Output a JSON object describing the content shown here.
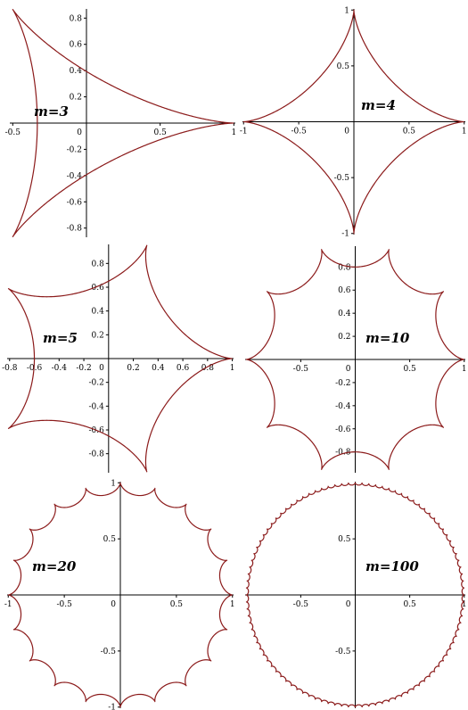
{
  "colors": {
    "curve": "#8b1a1a",
    "axes": "#000000",
    "background": "#ffffff"
  },
  "chart_data": [
    {
      "type": "line",
      "m": 3,
      "title": "m=3",
      "legend_position": "center-left",
      "xlim": [
        -0.52,
        1.01
      ],
      "ylim": [
        -0.87,
        0.87
      ],
      "xticks": [
        {
          "v": -0.5,
          "t": "-0.5"
        },
        {
          "v": 0.5,
          "t": "0.5"
        },
        {
          "v": 1,
          "t": "1"
        }
      ],
      "yticks": [
        {
          "v": 0.8,
          "t": "0.8"
        },
        {
          "v": 0.6,
          "t": "0.6"
        },
        {
          "v": 0.4,
          "t": "0.4"
        },
        {
          "v": 0.2,
          "t": "0.2"
        },
        {
          "v": -0.2,
          "t": "-0.2"
        },
        {
          "v": -0.4,
          "t": "-0.4"
        },
        {
          "v": -0.6,
          "t": "-0.6"
        },
        {
          "v": -0.8,
          "t": "-0.8"
        }
      ],
      "origin_label": "0"
    },
    {
      "type": "line",
      "m": 4,
      "title": "m=4",
      "legend_position": "center-right",
      "xlim": [
        -1.01,
        1.01
      ],
      "ylim": [
        -1.01,
        1.01
      ],
      "xticks": [
        {
          "v": -1,
          "t": "-1"
        },
        {
          "v": -0.5,
          "t": "-0.5"
        },
        {
          "v": 0.5,
          "t": "0.5"
        },
        {
          "v": 1,
          "t": "1"
        }
      ],
      "yticks": [
        {
          "v": 1,
          "t": "1"
        },
        {
          "v": 0.5,
          "t": "0.5"
        },
        {
          "v": -0.5,
          "t": "-0.5"
        },
        {
          "v": -1,
          "t": "-1"
        }
      ],
      "origin_label": "0"
    },
    {
      "type": "line",
      "m": 5,
      "title": "m=5",
      "legend_position": "center-left",
      "xlim": [
        -0.82,
        1.01
      ],
      "ylim": [
        -0.96,
        0.96
      ],
      "xticks": [
        {
          "v": -0.8,
          "t": "-0.8"
        },
        {
          "v": -0.6,
          "t": "-0.6"
        },
        {
          "v": -0.4,
          "t": "-0.4"
        },
        {
          "v": -0.2,
          "t": "-0.2"
        },
        {
          "v": 0.2,
          "t": "0.2"
        },
        {
          "v": 0.4,
          "t": "0.4"
        },
        {
          "v": 0.6,
          "t": "0.6"
        },
        {
          "v": 0.8,
          "t": "0.8"
        },
        {
          "v": 1,
          "t": "1"
        }
      ],
      "yticks": [
        {
          "v": 0.8,
          "t": "0.8"
        },
        {
          "v": 0.6,
          "t": "0.6"
        },
        {
          "v": 0.4,
          "t": "0.4"
        },
        {
          "v": 0.2,
          "t": "0.2"
        },
        {
          "v": -0.2,
          "t": "-0.2"
        },
        {
          "v": -0.4,
          "t": "-0.4"
        },
        {
          "v": -0.6,
          "t": "-0.6"
        },
        {
          "v": -0.8,
          "t": "-0.8"
        }
      ],
      "origin_label": "0"
    },
    {
      "type": "line",
      "m": 10,
      "title": "m=10",
      "legend_position": "center-right",
      "xlim": [
        -1.01,
        1.01
      ],
      "ylim": [
        -0.98,
        0.98
      ],
      "xticks": [
        {
          "v": -0.5,
          "t": "-0.5"
        },
        {
          "v": 0.5,
          "t": "0.5"
        },
        {
          "v": 1,
          "t": "1"
        }
      ],
      "yticks": [
        {
          "v": 0.8,
          "t": "0.8"
        },
        {
          "v": 0.6,
          "t": "0.6"
        },
        {
          "v": 0.4,
          "t": "0.4"
        },
        {
          "v": 0.2,
          "t": "0.2"
        },
        {
          "v": -0.2,
          "t": "-0.2"
        },
        {
          "v": -0.4,
          "t": "-0.4"
        },
        {
          "v": -0.6,
          "t": "-0.6"
        },
        {
          "v": -0.8,
          "t": "-0.8"
        }
      ],
      "origin_label": "0"
    },
    {
      "type": "line",
      "m": 20,
      "title": "m=20",
      "legend_position": "center-left",
      "xlim": [
        -1.01,
        1.01
      ],
      "ylim": [
        -1.01,
        1.01
      ],
      "xticks": [
        {
          "v": -1,
          "t": "-1"
        },
        {
          "v": -0.5,
          "t": "-0.5"
        },
        {
          "v": 0.5,
          "t": "0.5"
        },
        {
          "v": 1,
          "t": "1"
        }
      ],
      "yticks": [
        {
          "v": 1,
          "t": "1"
        },
        {
          "v": 0.5,
          "t": "0.5"
        },
        {
          "v": -0.5,
          "t": "-0.5"
        },
        {
          "v": -1,
          "t": "-1"
        }
      ],
      "origin_label": "0"
    },
    {
      "type": "line",
      "m": 100,
      "title": "m=100",
      "legend_position": "center-right",
      "xlim": [
        -1.01,
        1.01
      ],
      "ylim": [
        -1.01,
        1.01
      ],
      "xticks": [
        {
          "v": -0.5,
          "t": "-0.5"
        },
        {
          "v": 0.5,
          "t": "0.5"
        },
        {
          "v": 1,
          "t": "1"
        }
      ],
      "yticks": [
        {
          "v": 0.5,
          "t": "0.5"
        },
        {
          "v": -0.5,
          "t": "-0.5"
        }
      ],
      "origin_label": "0"
    }
  ]
}
